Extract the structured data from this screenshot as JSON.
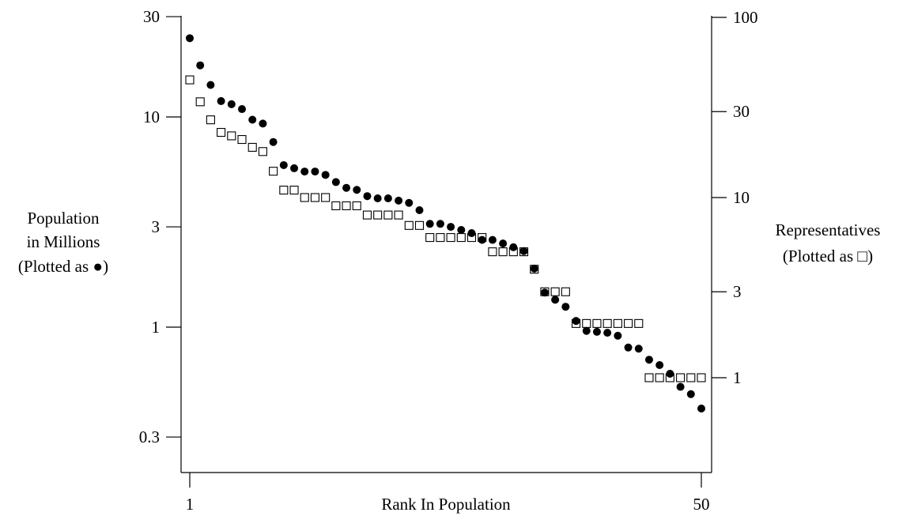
{
  "chart_data": {
    "type": "scatter",
    "xlabel": "Rank In Population",
    "ylabel_left_lines": [
      "Population",
      "in Millions",
      "(Plotted as ●)"
    ],
    "ylabel_right_lines": [
      "Representatives",
      "(Plotted as □)"
    ],
    "x_ticks": [
      1,
      50
    ],
    "x_range": [
      1,
      50
    ],
    "left_axis": {
      "scale": "log",
      "ticks": [
        0.3,
        1,
        3,
        10,
        30
      ],
      "range": [
        0.2,
        30
      ]
    },
    "right_axis": {
      "scale": "log",
      "ticks": [
        1,
        3,
        10,
        30,
        100
      ],
      "range": [
        0.5,
        100
      ]
    },
    "series": [
      {
        "name": "Population",
        "marker": "filled-circle",
        "axis": "left",
        "values": [
          23.7,
          17.6,
          14.2,
          11.9,
          11.5,
          10.9,
          9.7,
          9.3,
          7.6,
          5.9,
          5.7,
          5.5,
          5.5,
          5.3,
          4.9,
          4.6,
          4.5,
          4.2,
          4.1,
          4.1,
          4.0,
          3.9,
          3.6,
          3.1,
          3.1,
          3.0,
          2.9,
          2.8,
          2.6,
          2.6,
          2.5,
          2.4,
          2.3,
          1.9,
          1.46,
          1.35,
          1.25,
          1.07,
          0.96,
          0.95,
          0.94,
          0.91,
          0.8,
          0.79,
          0.7,
          0.66,
          0.6,
          0.52,
          0.48,
          0.41
        ]
      },
      {
        "name": "Representatives",
        "marker": "open-square",
        "axis": "right",
        "values": [
          45,
          34,
          27,
          23,
          22,
          21,
          19,
          18,
          14,
          11,
          11,
          10,
          10,
          10,
          9,
          9,
          9,
          8,
          8,
          8,
          8,
          7,
          7,
          6,
          6,
          6,
          6,
          6,
          6,
          5,
          5,
          5,
          5,
          4,
          3,
          3,
          3,
          2,
          2,
          2,
          2,
          2,
          2,
          2,
          1,
          1,
          1,
          1,
          1,
          1
        ]
      }
    ]
  }
}
